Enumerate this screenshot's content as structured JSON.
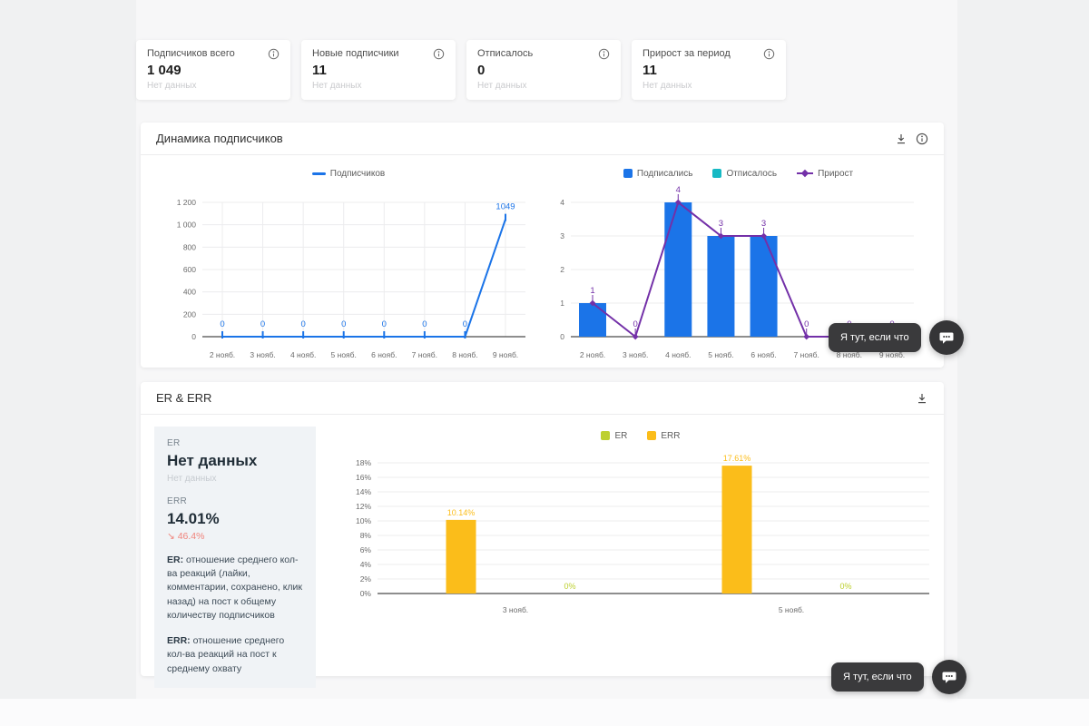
{
  "stat_cards": [
    {
      "title": "Подписчиков всего",
      "value": "1 049",
      "subtitle": "Нет данных"
    },
    {
      "title": "Новые подписчики",
      "value": "11",
      "subtitle": "Нет данных"
    },
    {
      "title": "Отписалось",
      "value": "0",
      "subtitle": "Нет данных"
    },
    {
      "title": "Прирост за период",
      "value": "11",
      "subtitle": "Нет данных"
    }
  ],
  "dynamics_card": {
    "title": "Динамика подписчиков"
  },
  "er_card": {
    "title": "ER & ERR",
    "er_label": "ER",
    "er_value": "Нет данных",
    "er_sub": "Нет данных",
    "err_label": "ERR",
    "err_value": "14.01%",
    "err_change": "↘ 46.4%",
    "er_desc_bold": "ER:",
    "er_desc_text": " отношение среднего кол-ва реакций (лайки, комментарии, сохранено, клик назад) на пост к общему количеству подписчиков",
    "err_desc_bold": "ERR:",
    "err_desc_text": " отношение среднего кол-ва реакций на пост к среднему охвату"
  },
  "chat_widget": {
    "label": "Я тут, если что"
  },
  "colors": {
    "blue": "#1b74e8",
    "teal": "#17b9c4",
    "purple": "#7330a8",
    "er_green": "#bdd02f",
    "err_yellow": "#fbbd1a",
    "negative_red": "#f0847c"
  },
  "chart_data": [
    {
      "type": "line",
      "title": "Динамика подписчиков — Подписчиков",
      "categories": [
        "2 нояб.",
        "3 нояб.",
        "4 нояб.",
        "5 нояб.",
        "6 нояб.",
        "7 нояб.",
        "8 нояб.",
        "9 нояб."
      ],
      "series": [
        {
          "name": "Подписчиков",
          "kind": "line",
          "color": "#1b74e8",
          "values": [
            0,
            0,
            0,
            0,
            0,
            0,
            0,
            1049
          ]
        }
      ],
      "ylim": [
        0,
        1200
      ],
      "ytick_step": 200,
      "grid": "horizontal+vertical",
      "legend_position": "top"
    },
    {
      "type": "bar+line",
      "title": "Динамика подписчиков — Подписались / Отписалось / Прирост",
      "categories": [
        "2 нояб.",
        "3 нояб.",
        "4 нояб.",
        "5 нояб.",
        "6 нояб.",
        "7 нояб.",
        "8 нояб.",
        "9 нояб."
      ],
      "series": [
        {
          "name": "Подписались",
          "kind": "bar",
          "color": "#1b74e8",
          "values": [
            1,
            0,
            4,
            3,
            3,
            0,
            0,
            0
          ]
        },
        {
          "name": "Отписалось",
          "kind": "bar",
          "color": "#17b9c4",
          "values": [
            0,
            0,
            0,
            0,
            0,
            0,
            0,
            0
          ]
        },
        {
          "name": "Прирост",
          "kind": "line",
          "color": "#7330a8",
          "values": [
            1,
            0,
            4,
            3,
            3,
            0,
            0,
            0
          ]
        }
      ],
      "ylim": [
        0,
        4
      ],
      "ytick_step": 1,
      "grid": "horizontal",
      "legend_position": "top"
    },
    {
      "type": "bar",
      "title": "ER & ERR",
      "categories": [
        "3 нояб.",
        "5 нояб."
      ],
      "series": [
        {
          "name": "ER",
          "kind": "bar",
          "color": "#bdd02f",
          "values": [
            0,
            0
          ]
        },
        {
          "name": "ERR",
          "kind": "bar",
          "color": "#fbbd1a",
          "values": [
            10.14,
            17.61
          ]
        }
      ],
      "ylim": [
        0,
        18
      ],
      "ytick_step": 2,
      "unit": "%",
      "grid": "horizontal",
      "legend_position": "top"
    }
  ]
}
